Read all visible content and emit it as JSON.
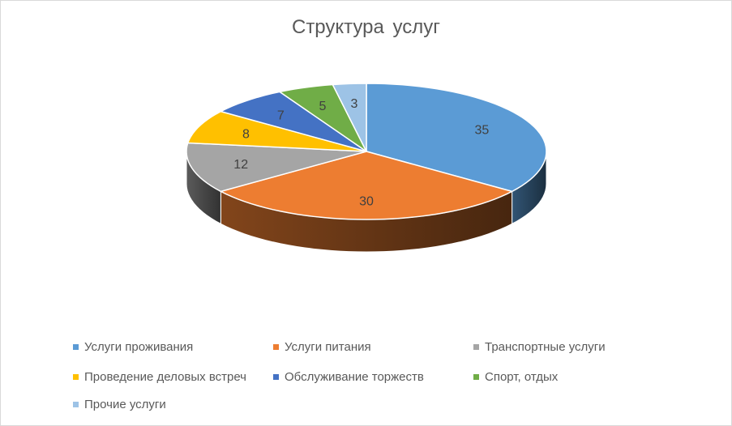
{
  "chart_data": {
    "type": "pie",
    "title": "Структура  услуг",
    "categories": [
      "Услуги проживания",
      "Услуги питания",
      "Транспортные услуги",
      "Проведение деловых встреч",
      "Обслуживание торжеств",
      "Спорт, отдых",
      "Прочие услуги"
    ],
    "values": [
      35,
      30,
      12,
      8,
      7,
      5,
      3
    ],
    "colors": [
      "#5B9BD5",
      "#ED7D31",
      "#A5A5A5",
      "#FFC000",
      "#4472C4",
      "#70AD47",
      "#9DC3E6"
    ],
    "data_labels": [
      "35",
      "30",
      "12",
      "8",
      "7",
      "5",
      "3"
    ],
    "legend_position": "bottom",
    "style": "3d-pie"
  }
}
